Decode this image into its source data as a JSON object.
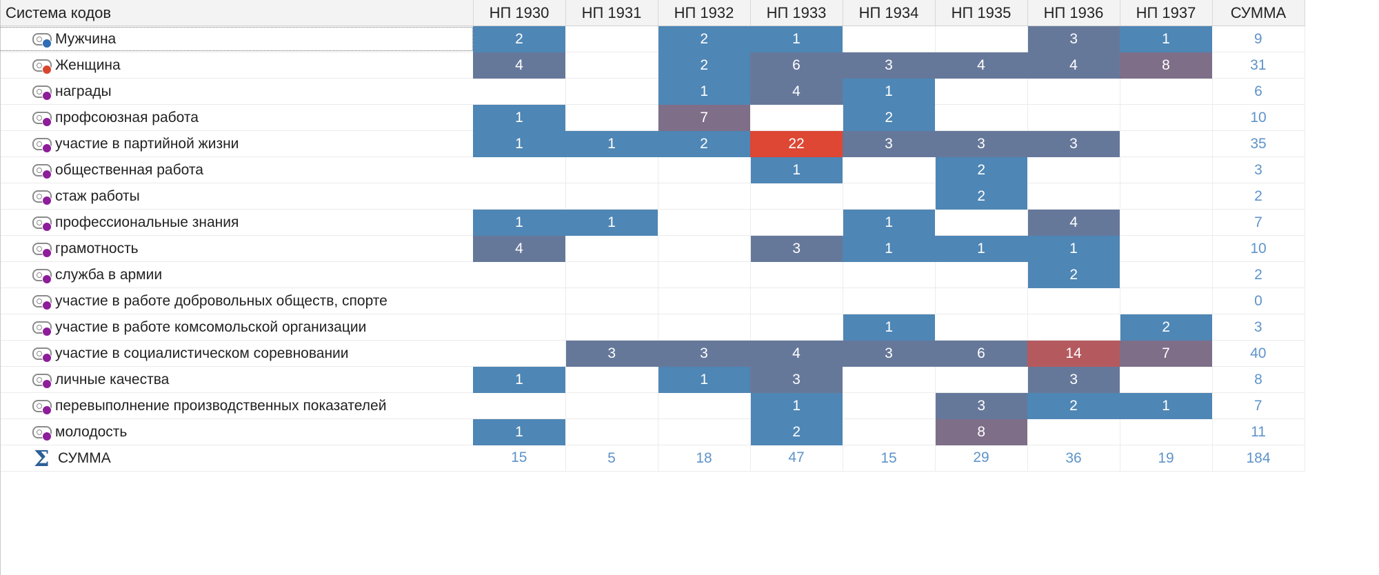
{
  "header": {
    "first_col": "Система кодов",
    "columns": [
      "НП 1930",
      "НП 1931",
      "НП 1932",
      "НП 1933",
      "НП 1934",
      "НП 1935",
      "НП 1936",
      "НП 1937",
      "СУММА"
    ]
  },
  "colors": {
    "blue": "#4e86b5",
    "slate": "#66789a",
    "mauve": "#7e6e88",
    "rose": "#b45a5e",
    "red": "#dd4734",
    "sum_text": "#5f93c9"
  },
  "rows": [
    {
      "label": "Мужчина",
      "dot": "#2f6db4",
      "selected": true,
      "cells": [
        {
          "v": "2",
          "c": "blue"
        },
        {
          "v": "",
          "c": ""
        },
        {
          "v": "2",
          "c": "blue"
        },
        {
          "v": "1",
          "c": "blue"
        },
        {
          "v": "",
          "c": ""
        },
        {
          "v": "",
          "c": ""
        },
        {
          "v": "3",
          "c": "slate"
        },
        {
          "v": "1",
          "c": "blue"
        }
      ],
      "sum": "9"
    },
    {
      "label": "Женщина",
      "dot": "#d8452e",
      "selected": false,
      "cells": [
        {
          "v": "4",
          "c": "slate"
        },
        {
          "v": "",
          "c": ""
        },
        {
          "v": "2",
          "c": "blue"
        },
        {
          "v": "6",
          "c": "slate"
        },
        {
          "v": "3",
          "c": "slate"
        },
        {
          "v": "4",
          "c": "slate"
        },
        {
          "v": "4",
          "c": "slate"
        },
        {
          "v": "8",
          "c": "mauve"
        }
      ],
      "sum": "31"
    },
    {
      "label": "награды",
      "dot": "#8e1d9a",
      "selected": false,
      "cells": [
        {
          "v": "",
          "c": ""
        },
        {
          "v": "",
          "c": ""
        },
        {
          "v": "1",
          "c": "blue"
        },
        {
          "v": "4",
          "c": "slate"
        },
        {
          "v": "1",
          "c": "blue"
        },
        {
          "v": "",
          "c": ""
        },
        {
          "v": "",
          "c": ""
        },
        {
          "v": "",
          "c": ""
        }
      ],
      "sum": "6"
    },
    {
      "label": "профсоюзная работа",
      "dot": "#8e1d9a",
      "selected": false,
      "cells": [
        {
          "v": "1",
          "c": "blue"
        },
        {
          "v": "",
          "c": ""
        },
        {
          "v": "7",
          "c": "mauve"
        },
        {
          "v": "",
          "c": ""
        },
        {
          "v": "2",
          "c": "blue"
        },
        {
          "v": "",
          "c": ""
        },
        {
          "v": "",
          "c": ""
        },
        {
          "v": "",
          "c": ""
        }
      ],
      "sum": "10"
    },
    {
      "label": "участие в партийной жизни",
      "dot": "#8e1d9a",
      "selected": false,
      "cells": [
        {
          "v": "1",
          "c": "blue"
        },
        {
          "v": "1",
          "c": "blue"
        },
        {
          "v": "2",
          "c": "blue"
        },
        {
          "v": "22",
          "c": "red"
        },
        {
          "v": "3",
          "c": "slate"
        },
        {
          "v": "3",
          "c": "slate"
        },
        {
          "v": "3",
          "c": "slate"
        },
        {
          "v": "",
          "c": ""
        }
      ],
      "sum": "35"
    },
    {
      "label": "общественная работа",
      "dot": "#8e1d9a",
      "selected": false,
      "cells": [
        {
          "v": "",
          "c": ""
        },
        {
          "v": "",
          "c": ""
        },
        {
          "v": "",
          "c": ""
        },
        {
          "v": "1",
          "c": "blue"
        },
        {
          "v": "",
          "c": ""
        },
        {
          "v": "2",
          "c": "blue"
        },
        {
          "v": "",
          "c": ""
        },
        {
          "v": "",
          "c": ""
        }
      ],
      "sum": "3"
    },
    {
      "label": "стаж работы",
      "dot": "#8e1d9a",
      "selected": false,
      "cells": [
        {
          "v": "",
          "c": ""
        },
        {
          "v": "",
          "c": ""
        },
        {
          "v": "",
          "c": ""
        },
        {
          "v": "",
          "c": ""
        },
        {
          "v": "",
          "c": ""
        },
        {
          "v": "2",
          "c": "blue"
        },
        {
          "v": "",
          "c": ""
        },
        {
          "v": "",
          "c": ""
        }
      ],
      "sum": "2"
    },
    {
      "label": "профессиональные знания",
      "dot": "#8e1d9a",
      "selected": false,
      "cells": [
        {
          "v": "1",
          "c": "blue"
        },
        {
          "v": "1",
          "c": "blue"
        },
        {
          "v": "",
          "c": ""
        },
        {
          "v": "",
          "c": ""
        },
        {
          "v": "1",
          "c": "blue"
        },
        {
          "v": "",
          "c": ""
        },
        {
          "v": "4",
          "c": "slate"
        },
        {
          "v": "",
          "c": ""
        }
      ],
      "sum": "7"
    },
    {
      "label": "грамотность",
      "dot": "#8e1d9a",
      "selected": false,
      "cells": [
        {
          "v": "4",
          "c": "slate"
        },
        {
          "v": "",
          "c": ""
        },
        {
          "v": "",
          "c": ""
        },
        {
          "v": "3",
          "c": "slate"
        },
        {
          "v": "1",
          "c": "blue"
        },
        {
          "v": "1",
          "c": "blue"
        },
        {
          "v": "1",
          "c": "blue"
        },
        {
          "v": "",
          "c": ""
        }
      ],
      "sum": "10"
    },
    {
      "label": "служба в армии",
      "dot": "#8e1d9a",
      "selected": false,
      "cells": [
        {
          "v": "",
          "c": ""
        },
        {
          "v": "",
          "c": ""
        },
        {
          "v": "",
          "c": ""
        },
        {
          "v": "",
          "c": ""
        },
        {
          "v": "",
          "c": ""
        },
        {
          "v": "",
          "c": ""
        },
        {
          "v": "2",
          "c": "blue"
        },
        {
          "v": "",
          "c": ""
        }
      ],
      "sum": "2"
    },
    {
      "label": "участие в работе добровольных обществ, спорте",
      "dot": "#8e1d9a",
      "selected": false,
      "cells": [
        {
          "v": "",
          "c": ""
        },
        {
          "v": "",
          "c": ""
        },
        {
          "v": "",
          "c": ""
        },
        {
          "v": "",
          "c": ""
        },
        {
          "v": "",
          "c": ""
        },
        {
          "v": "",
          "c": ""
        },
        {
          "v": "",
          "c": ""
        },
        {
          "v": "",
          "c": ""
        }
      ],
      "sum": "0"
    },
    {
      "label": "участие в работе комсомольской организации",
      "dot": "#8e1d9a",
      "selected": false,
      "cells": [
        {
          "v": "",
          "c": ""
        },
        {
          "v": "",
          "c": ""
        },
        {
          "v": "",
          "c": ""
        },
        {
          "v": "",
          "c": ""
        },
        {
          "v": "1",
          "c": "blue"
        },
        {
          "v": "",
          "c": ""
        },
        {
          "v": "",
          "c": ""
        },
        {
          "v": "2",
          "c": "blue"
        }
      ],
      "sum": "3"
    },
    {
      "label": "участие в социалистическом соревновании",
      "dot": "#8e1d9a",
      "selected": false,
      "cells": [
        {
          "v": "",
          "c": ""
        },
        {
          "v": "3",
          "c": "slate"
        },
        {
          "v": "3",
          "c": "slate"
        },
        {
          "v": "4",
          "c": "slate"
        },
        {
          "v": "3",
          "c": "slate"
        },
        {
          "v": "6",
          "c": "slate"
        },
        {
          "v": "14",
          "c": "rose"
        },
        {
          "v": "7",
          "c": "mauve"
        }
      ],
      "sum": "40"
    },
    {
      "label": "личные качества",
      "dot": "#8e1d9a",
      "selected": false,
      "cells": [
        {
          "v": "1",
          "c": "blue"
        },
        {
          "v": "",
          "c": ""
        },
        {
          "v": "1",
          "c": "blue"
        },
        {
          "v": "3",
          "c": "slate"
        },
        {
          "v": "",
          "c": ""
        },
        {
          "v": "",
          "c": ""
        },
        {
          "v": "3",
          "c": "slate"
        },
        {
          "v": "",
          "c": ""
        }
      ],
      "sum": "8"
    },
    {
      "label": "перевыполнение производственных показателей",
      "dot": "#8e1d9a",
      "selected": false,
      "cells": [
        {
          "v": "",
          "c": ""
        },
        {
          "v": "",
          "c": ""
        },
        {
          "v": "",
          "c": ""
        },
        {
          "v": "1",
          "c": "blue"
        },
        {
          "v": "",
          "c": ""
        },
        {
          "v": "3",
          "c": "slate"
        },
        {
          "v": "2",
          "c": "blue"
        },
        {
          "v": "1",
          "c": "blue"
        }
      ],
      "sum": "7"
    },
    {
      "label": "молодость",
      "dot": "#8e1d9a",
      "selected": false,
      "cells": [
        {
          "v": "1",
          "c": "blue"
        },
        {
          "v": "",
          "c": ""
        },
        {
          "v": "",
          "c": ""
        },
        {
          "v": "2",
          "c": "blue"
        },
        {
          "v": "",
          "c": ""
        },
        {
          "v": "8",
          "c": "mauve"
        },
        {
          "v": "",
          "c": ""
        },
        {
          "v": "",
          "c": ""
        }
      ],
      "sum": "11"
    }
  ],
  "totals": {
    "label": "СУММА",
    "icon": "sigma-icon",
    "values": [
      "15",
      "5",
      "18",
      "47",
      "15",
      "29",
      "36",
      "19",
      "184"
    ]
  }
}
